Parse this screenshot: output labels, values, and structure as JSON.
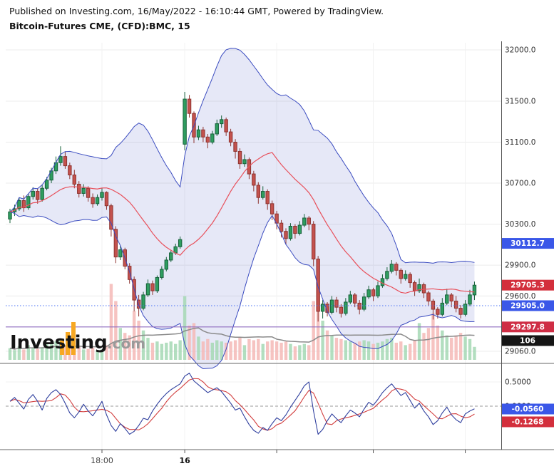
{
  "header": {
    "published_line": "Published on Investing.com, 16/May/2022 - 16:10:44 GMT, Powered by TradingView.",
    "instrument_line": "Bitcoin-Futures CME, (CFD):BMC, 15"
  },
  "watermark": {
    "brand": "Investing",
    "suffix": ".com"
  },
  "colors": {
    "candle_up": "#2f9e60",
    "candle_up_border": "#17603a",
    "candle_down": "#c4524e",
    "candle_down_border": "#8e3430",
    "band_line": "#3b4cc0",
    "band_mid": "#e8505b",
    "volume_up": "#a5d8b4",
    "volume_down": "#f4b8b6",
    "volume_ma": "#8a8a8a",
    "osc_blue": "#2f3f9e",
    "osc_red": "#d23f3f",
    "badge_blue": "#3a57e8",
    "badge_red": "#d32f3c",
    "badge_black": "#151515",
    "dotted_line": "#4a72f5",
    "purple_line": "#8e6bbf",
    "logo_orange": "#f7a823"
  },
  "chart_data": {
    "type": "candlestick",
    "title": "Bitcoin-Futures CME, (CFD):BMC, 15",
    "interval_minutes": 15,
    "indicators": [
      "Bollinger Bands (20,2)",
      "Volume",
      "Oscillator"
    ],
    "price_axis_labels": [
      "32000.0",
      "31500.0",
      "31100.0",
      "30700.0",
      "30300.0",
      "29900.0",
      "29600.0",
      "29060.0"
    ],
    "price_badges": [
      {
        "label": "30112.7",
        "price": 30112.7,
        "color": "#3a57e8"
      },
      {
        "label": "29705.3",
        "price": 29705.3,
        "color": "#d32f3c"
      },
      {
        "label": "29505.0",
        "price": 29505.0,
        "color": "#3a57e8"
      },
      {
        "label": "29297.8",
        "price": 29297.8,
        "color": "#cf2e45"
      },
      {
        "label": "106",
        "price": null,
        "color": "#151515"
      }
    ],
    "hlines": [
      {
        "price": 29505.0,
        "color": "#4a72f5",
        "style": "dotted"
      },
      {
        "price": 29297.8,
        "color": "#8e6bbf",
        "style": "solid"
      }
    ],
    "bollinger": {
      "period": 20,
      "mult": 2
    },
    "time_axis_labels": [
      {
        "label": "18:00",
        "index": 20,
        "bold": false
      },
      {
        "label": "16",
        "index": 38,
        "bold": true
      }
    ],
    "time_axis_minor_ticks": [
      58,
      79,
      99
    ],
    "candles": [
      [
        30350,
        30450,
        30310,
        30420,
        95
      ],
      [
        30420,
        30490,
        30380,
        30450,
        80
      ],
      [
        30450,
        30560,
        30430,
        30530,
        110
      ],
      [
        30530,
        30580,
        30420,
        30460,
        85
      ],
      [
        30460,
        30600,
        30440,
        30570,
        120
      ],
      [
        30570,
        30660,
        30540,
        30620,
        100
      ],
      [
        30620,
        30650,
        30500,
        30540,
        90
      ],
      [
        30540,
        30680,
        30520,
        30650,
        105
      ],
      [
        30650,
        30760,
        30630,
        30730,
        130
      ],
      [
        30730,
        30850,
        30700,
        30820,
        140
      ],
      [
        30820,
        30960,
        30790,
        30900,
        150
      ],
      [
        30900,
        31060,
        30870,
        30960,
        160
      ],
      [
        30960,
        31010,
        30840,
        30870,
        110
      ],
      [
        30870,
        30900,
        30740,
        30780,
        100
      ],
      [
        30780,
        30830,
        30650,
        30690,
        95
      ],
      [
        30690,
        30720,
        30560,
        30600,
        105
      ],
      [
        30600,
        30690,
        30570,
        30650,
        85
      ],
      [
        30650,
        30670,
        30520,
        30560,
        90
      ],
      [
        30560,
        30600,
        30460,
        30500,
        100
      ],
      [
        30500,
        30590,
        30480,
        30560,
        80
      ],
      [
        30560,
        30650,
        30530,
        30610,
        85
      ],
      [
        30610,
        30620,
        30440,
        30480,
        120
      ],
      [
        30480,
        30500,
        30180,
        30250,
        620
      ],
      [
        30250,
        30280,
        29920,
        29980,
        480
      ],
      [
        29980,
        30090,
        29950,
        30050,
        260
      ],
      [
        30050,
        30070,
        29860,
        29890,
        220
      ],
      [
        29890,
        29920,
        29720,
        29760,
        200
      ],
      [
        29760,
        29790,
        29450,
        29560,
        400
      ],
      [
        29560,
        29610,
        29400,
        29480,
        320
      ],
      [
        29480,
        29640,
        29460,
        29610,
        240
      ],
      [
        29610,
        29760,
        29590,
        29720,
        180
      ],
      [
        29720,
        29750,
        29610,
        29650,
        140
      ],
      [
        29650,
        29800,
        29630,
        29780,
        150
      ],
      [
        29780,
        29890,
        29760,
        29860,
        130
      ],
      [
        29860,
        29980,
        29840,
        29950,
        140
      ],
      [
        29950,
        30050,
        29930,
        30020,
        150
      ],
      [
        30020,
        30110,
        30000,
        30080,
        130
      ],
      [
        30080,
        30180,
        30060,
        30150,
        160
      ],
      [
        31080,
        31590,
        31020,
        31520,
        520
      ],
      [
        31520,
        31560,
        31340,
        31380,
        280
      ],
      [
        31380,
        31400,
        31090,
        31150,
        300
      ],
      [
        31150,
        31260,
        31120,
        31220,
        190
      ],
      [
        31220,
        31250,
        31100,
        31150,
        150
      ],
      [
        31150,
        31180,
        31040,
        31100,
        170
      ],
      [
        31100,
        31210,
        31080,
        31180,
        140
      ],
      [
        31180,
        31320,
        31160,
        31280,
        160
      ],
      [
        31280,
        31360,
        31240,
        31320,
        150
      ],
      [
        31320,
        31340,
        31160,
        31200,
        140
      ],
      [
        31200,
        31230,
        31060,
        31100,
        150
      ],
      [
        31100,
        31130,
        30940,
        31010,
        160
      ],
      [
        31010,
        31040,
        30840,
        30890,
        180
      ],
      [
        30890,
        30980,
        30860,
        30930,
        120
      ],
      [
        30930,
        30950,
        30740,
        30790,
        170
      ],
      [
        30790,
        30820,
        30620,
        30680,
        160
      ],
      [
        30680,
        30710,
        30500,
        30560,
        170
      ],
      [
        30560,
        30670,
        30540,
        30620,
        130
      ],
      [
        30620,
        30640,
        30440,
        30500,
        150
      ],
      [
        30500,
        30530,
        30340,
        30400,
        160
      ],
      [
        30400,
        30430,
        30250,
        30310,
        150
      ],
      [
        30310,
        30340,
        30170,
        30230,
        140
      ],
      [
        30230,
        30260,
        30100,
        30160,
        150
      ],
      [
        30160,
        30310,
        30140,
        30280,
        130
      ],
      [
        30280,
        30300,
        30160,
        30210,
        110
      ],
      [
        30210,
        30330,
        30190,
        30290,
        120
      ],
      [
        30290,
        30400,
        30270,
        30360,
        130
      ],
      [
        30360,
        30380,
        30240,
        30300,
        120
      ],
      [
        30300,
        30330,
        29890,
        29960,
        480
      ],
      [
        29960,
        29990,
        29350,
        29450,
        640
      ],
      [
        29450,
        29560,
        29380,
        29520,
        320
      ],
      [
        29520,
        29540,
        29400,
        29440,
        240
      ],
      [
        29440,
        29600,
        29420,
        29560,
        200
      ],
      [
        29560,
        29590,
        29440,
        29490,
        180
      ],
      [
        29490,
        29520,
        29390,
        29430,
        170
      ],
      [
        29430,
        29580,
        29410,
        29540,
        160
      ],
      [
        29540,
        29650,
        29520,
        29610,
        150
      ],
      [
        29610,
        29630,
        29490,
        29530,
        140
      ],
      [
        29530,
        29560,
        29420,
        29470,
        150
      ],
      [
        29470,
        29630,
        29450,
        29590,
        160
      ],
      [
        29590,
        29700,
        29570,
        29660,
        150
      ],
      [
        29660,
        29680,
        29550,
        29600,
        130
      ],
      [
        29600,
        29740,
        29580,
        29700,
        140
      ],
      [
        29700,
        29810,
        29680,
        29770,
        150
      ],
      [
        29770,
        29880,
        29750,
        29840,
        170
      ],
      [
        29840,
        29950,
        29820,
        29910,
        180
      ],
      [
        29910,
        29930,
        29800,
        29850,
        140
      ],
      [
        29850,
        29870,
        29720,
        29770,
        150
      ],
      [
        29770,
        29850,
        29750,
        29810,
        120
      ],
      [
        29810,
        29830,
        29680,
        29730,
        130
      ],
      [
        29730,
        29750,
        29600,
        29650,
        160
      ],
      [
        29650,
        29770,
        29630,
        29710,
        300
      ],
      [
        29710,
        29730,
        29580,
        29630,
        220
      ],
      [
        29630,
        29650,
        29500,
        29550,
        260
      ],
      [
        29550,
        29570,
        29370,
        29470,
        380
      ],
      [
        29470,
        29490,
        29380,
        29420,
        280
      ],
      [
        29420,
        29580,
        29400,
        29530,
        240
      ],
      [
        29530,
        29670,
        29510,
        29610,
        200
      ],
      [
        29610,
        29630,
        29490,
        29550,
        180
      ],
      [
        29550,
        29600,
        29440,
        29480,
        200
      ],
      [
        29480,
        29510,
        29380,
        29420,
        220
      ],
      [
        29420,
        29560,
        29400,
        29520,
        190
      ],
      [
        29520,
        29660,
        29500,
        29610,
        170
      ],
      [
        29610,
        29740,
        29560,
        29705,
        106
      ]
    ],
    "oscillator": {
      "axis_labels": [
        {
          "label": "0.5000",
          "value": 0.5
        },
        {
          "label": "0.0000",
          "value": 0.0
        }
      ],
      "badges": [
        {
          "value": "-0.0560",
          "color": "#3a57e8"
        },
        {
          "value": "-0.1268",
          "color": "#d32f3c"
        }
      ],
      "values": [
        0.1,
        0.18,
        0.06,
        -0.06,
        0.14,
        0.24,
        0.1,
        -0.08,
        0.16,
        0.28,
        0.34,
        0.24,
        0.06,
        -0.14,
        -0.24,
        -0.12,
        0.04,
        -0.1,
        -0.2,
        -0.06,
        0.1,
        -0.18,
        -0.4,
        -0.52,
        -0.36,
        -0.46,
        -0.58,
        -0.52,
        -0.4,
        -0.25,
        -0.28,
        -0.1,
        0.04,
        0.16,
        0.26,
        0.34,
        0.4,
        0.46,
        0.62,
        0.68,
        0.52,
        0.44,
        0.36,
        0.28,
        0.33,
        0.38,
        0.3,
        0.18,
        0.06,
        -0.08,
        -0.04,
        -0.22,
        -0.38,
        -0.5,
        -0.56,
        -0.44,
        -0.5,
        -0.36,
        -0.24,
        -0.3,
        -0.18,
        -0.02,
        0.12,
        0.26,
        0.42,
        0.5,
        -0.1,
        -0.58,
        -0.48,
        -0.3,
        -0.16,
        -0.26,
        -0.34,
        -0.2,
        -0.08,
        -0.14,
        -0.22,
        -0.06,
        0.08,
        0.02,
        0.14,
        0.28,
        0.38,
        0.46,
        0.34,
        0.22,
        0.28,
        0.12,
        -0.04,
        0.06,
        -0.1,
        -0.22,
        -0.38,
        -0.3,
        -0.14,
        -0.02,
        -0.18,
        -0.28,
        -0.34,
        -0.16,
        -0.1,
        -0.056
      ]
    }
  }
}
